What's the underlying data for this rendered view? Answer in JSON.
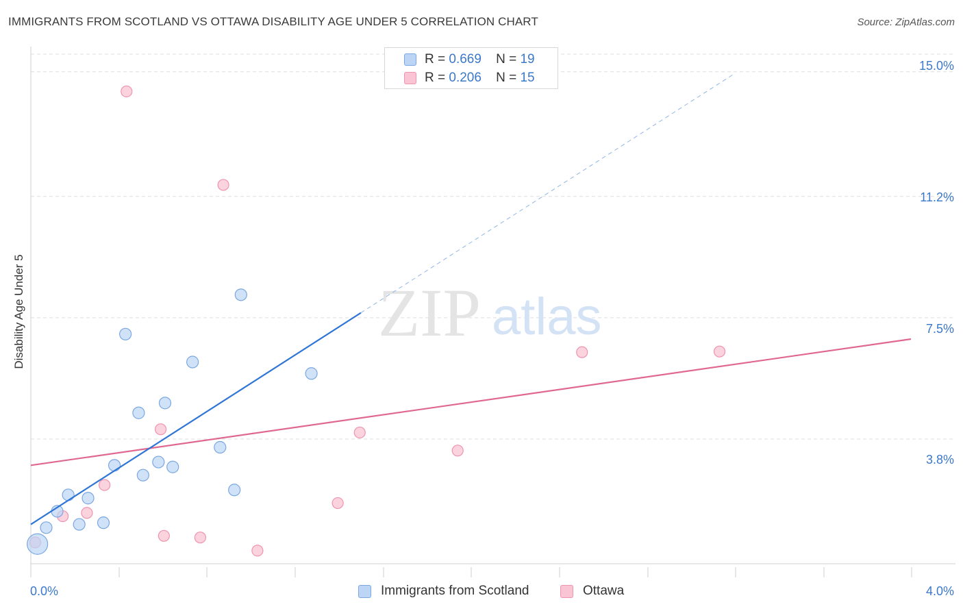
{
  "title": "IMMIGRANTS FROM SCOTLAND VS OTTAWA DISABILITY AGE UNDER 5 CORRELATION CHART",
  "source": "Source: ZipAtlas.com",
  "watermark": {
    "zip": "ZIP",
    "atlas": "atlas"
  },
  "legend": [
    {
      "r_label": "R =",
      "r_value": "0.669",
      "n_label": "N =",
      "n_value": "19"
    },
    {
      "r_label": "R =",
      "r_value": "0.206",
      "n_label": "N =",
      "n_value": "15"
    }
  ],
  "bottom_legend": [
    "Immigrants from Scotland",
    "Ottawa"
  ],
  "colors": {
    "blue_fill": "#bcd5f5",
    "blue_stroke": "#7aa7e0",
    "blue_line": "#2f75d6",
    "pink_fill": "#f9c4d4",
    "pink_stroke": "#ef93ae",
    "pink_line": "#e0678f",
    "tick_text": "#3a78c9",
    "grid": "#dedede"
  },
  "chart_data": {
    "type": "scatter",
    "title": "IMMIGRANTS FROM SCOTLAND VS OTTAWA DISABILITY AGE UNDER 5 CORRELATION CHART",
    "xlabel": "",
    "ylabel": "Disability Age Under 5",
    "xlim": [
      0,
      4.0
    ],
    "ylim": [
      0,
      15.6
    ],
    "x_tick_labels": [
      "0.0%",
      "4.0%"
    ],
    "y_ticks": [
      3.8,
      7.5,
      11.2,
      15.0
    ],
    "y_tick_labels": [
      "3.8%",
      "7.5%",
      "11.2%",
      "15.0%"
    ],
    "grid": true,
    "series": [
      {
        "name": "Immigrants from Scotland",
        "points": [
          {
            "x": 0.03,
            "y": 0.6,
            "big": true
          },
          {
            "x": 0.07,
            "y": 1.1
          },
          {
            "x": 0.12,
            "y": 1.6
          },
          {
            "x": 0.17,
            "y": 2.1
          },
          {
            "x": 0.22,
            "y": 1.2
          },
          {
            "x": 0.26,
            "y": 2.0
          },
          {
            "x": 0.33,
            "y": 1.25
          },
          {
            "x": 0.38,
            "y": 3.0
          },
          {
            "x": 0.43,
            "y": 7.0
          },
          {
            "x": 0.49,
            "y": 4.6
          },
          {
            "x": 0.51,
            "y": 2.7
          },
          {
            "x": 0.58,
            "y": 3.1
          },
          {
            "x": 0.61,
            "y": 4.9
          },
          {
            "x": 0.645,
            "y": 2.95
          },
          {
            "x": 0.735,
            "y": 6.15
          },
          {
            "x": 0.86,
            "y": 3.55
          },
          {
            "x": 0.925,
            "y": 2.25
          },
          {
            "x": 0.955,
            "y": 8.2
          },
          {
            "x": 1.275,
            "y": 5.8
          }
        ],
        "trend": {
          "x0": 0.0,
          "y0": 1.2,
          "x_solid_end": 1.5,
          "y_solid_end": 7.65,
          "x_dash_end": 3.2,
          "y_dash_end": 14.95
        }
      },
      {
        "name": "Ottawa",
        "points": [
          {
            "x": 0.02,
            "y": 0.65
          },
          {
            "x": 0.145,
            "y": 1.45
          },
          {
            "x": 0.255,
            "y": 1.55
          },
          {
            "x": 0.335,
            "y": 2.4
          },
          {
            "x": 0.435,
            "y": 14.4
          },
          {
            "x": 0.59,
            "y": 4.1
          },
          {
            "x": 0.605,
            "y": 0.85
          },
          {
            "x": 0.77,
            "y": 0.8
          },
          {
            "x": 0.875,
            "y": 11.55
          },
          {
            "x": 1.03,
            "y": 0.4
          },
          {
            "x": 1.395,
            "y": 1.85
          },
          {
            "x": 1.495,
            "y": 4.0
          },
          {
            "x": 1.94,
            "y": 3.45
          },
          {
            "x": 2.505,
            "y": 6.45
          },
          {
            "x": 3.13,
            "y": 6.47
          }
        ],
        "trend": {
          "x0": 0.0,
          "y0": 3.0,
          "x1": 4.0,
          "y1": 6.85
        }
      }
    ]
  }
}
